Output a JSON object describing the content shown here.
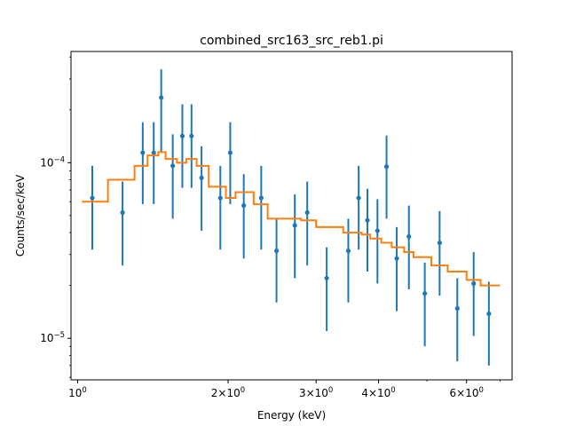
{
  "chart_data": {
    "type": "scatter",
    "title": "combined_src163_src_reb1.pi",
    "xlabel": "Energy (keV)",
    "ylabel": "Counts/sec/keV",
    "xscale": "log",
    "yscale": "log",
    "xlim": [
      0.97,
      7.4
    ],
    "ylim": [
      5.8e-06,
      0.00043
    ],
    "grid": false,
    "x_ticks": [
      {
        "value": 1,
        "label": "10^0",
        "mant": "10",
        "exp": "0"
      },
      {
        "value": 2,
        "label": "2×10^0",
        "mant": "2×10",
        "exp": "0"
      },
      {
        "value": 3,
        "label": "3×10^0",
        "mant": "3×10",
        "exp": "0"
      },
      {
        "value": 4,
        "label": "4×10^0",
        "mant": "4×10",
        "exp": "0"
      },
      {
        "value": 6,
        "label": "6×10^0",
        "mant": "6×10",
        "exp": "0"
      }
    ],
    "y_ticks": [
      {
        "value": 0.0001,
        "label": "10^-4",
        "mant": "10",
        "exp": "−4"
      },
      {
        "value": 1e-05,
        "label": "10^-5",
        "mant": "10",
        "exp": "−5"
      }
    ],
    "series": [
      {
        "kind": "errorbar",
        "color": "#1f77b4",
        "points": [
          {
            "x": 1.07,
            "y": 6.3e-05,
            "lo": 3.2e-05,
            "hi": 9.6e-05
          },
          {
            "x": 1.23,
            "y": 5.2e-05,
            "lo": 2.6e-05,
            "hi": 7.8e-05
          },
          {
            "x": 1.35,
            "y": 0.000114,
            "lo": 5.8e-05,
            "hi": 0.00017
          },
          {
            "x": 1.42,
            "y": 0.000114,
            "lo": 5.8e-05,
            "hi": 0.00017
          },
          {
            "x": 1.47,
            "y": 0.000235,
            "lo": 0.000115,
            "hi": 0.00034
          },
          {
            "x": 1.55,
            "y": 9.6e-05,
            "lo": 4.8e-05,
            "hi": 0.000145
          },
          {
            "x": 1.62,
            "y": 0.000142,
            "lo": 7.2e-05,
            "hi": 0.000215
          },
          {
            "x": 1.69,
            "y": 0.000142,
            "lo": 7.2e-05,
            "hi": 0.000215
          },
          {
            "x": 1.77,
            "y": 8.2e-05,
            "lo": 4.1e-05,
            "hi": 0.000124
          },
          {
            "x": 1.93,
            "y": 6.3e-05,
            "lo": 3.2e-05,
            "hi": 9.6e-05
          },
          {
            "x": 2.02,
            "y": 0.000114,
            "lo": 5.8e-05,
            "hi": 0.00017
          },
          {
            "x": 2.15,
            "y": 5.7e-05,
            "lo": 2.85e-05,
            "hi": 8.6e-05
          },
          {
            "x": 2.33,
            "y": 6.3e-05,
            "lo": 3.2e-05,
            "hi": 9.6e-05
          },
          {
            "x": 2.5,
            "y": 3.15e-05,
            "lo": 1.6e-05,
            "hi": 4.8e-05
          },
          {
            "x": 2.72,
            "y": 4.4e-05,
            "lo": 2.2e-05,
            "hi": 6.6e-05
          },
          {
            "x": 2.88,
            "y": 5.2e-05,
            "lo": 2.6e-05,
            "hi": 7.8e-05
          },
          {
            "x": 3.15,
            "y": 2.2e-05,
            "lo": 1.1e-05,
            "hi": 3.3e-05
          },
          {
            "x": 3.48,
            "y": 3.15e-05,
            "lo": 1.6e-05,
            "hi": 4.8e-05
          },
          {
            "x": 3.65,
            "y": 6.3e-05,
            "lo": 3.2e-05,
            "hi": 9.6e-05
          },
          {
            "x": 3.8,
            "y": 4.7e-05,
            "lo": 2.4e-05,
            "hi": 7.1e-05
          },
          {
            "x": 3.98,
            "y": 4.1e-05,
            "lo": 2.05e-05,
            "hi": 6.2e-05
          },
          {
            "x": 4.15,
            "y": 9.5e-05,
            "lo": 4.8e-05,
            "hi": 0.000143
          },
          {
            "x": 4.35,
            "y": 2.85e-05,
            "lo": 1.43e-05,
            "hi": 4.3e-05
          },
          {
            "x": 4.6,
            "y": 3.8e-05,
            "lo": 1.9e-05,
            "hi": 5.7e-05
          },
          {
            "x": 4.95,
            "y": 1.8e-05,
            "lo": 9e-06,
            "hi": 2.7e-05
          },
          {
            "x": 5.3,
            "y": 3.5e-05,
            "lo": 1.75e-05,
            "hi": 5.3e-05
          },
          {
            "x": 5.75,
            "y": 1.48e-05,
            "lo": 7.4e-06,
            "hi": 2.2e-05
          },
          {
            "x": 6.2,
            "y": 2.05e-05,
            "lo": 1.03e-05,
            "hi": 3.1e-05
          },
          {
            "x": 6.65,
            "y": 1.38e-05,
            "lo": 7e-06,
            "hi": 2.1e-05
          }
        ]
      },
      {
        "kind": "step",
        "color": "#ff7f0e",
        "points": [
          {
            "x": 1.02,
            "y": 6e-05
          },
          {
            "x": 1.15,
            "y": 8e-05
          },
          {
            "x": 1.3,
            "y": 9.6e-05
          },
          {
            "x": 1.38,
            "y": 0.00011
          },
          {
            "x": 1.45,
            "y": 0.000115
          },
          {
            "x": 1.5,
            "y": 0.000105
          },
          {
            "x": 1.58,
            "y": 0.0001
          },
          {
            "x": 1.65,
            "y": 0.000105
          },
          {
            "x": 1.73,
            "y": 9.6e-05
          },
          {
            "x": 1.83,
            "y": 7.3e-05
          },
          {
            "x": 1.98,
            "y": 6.3e-05
          },
          {
            "x": 2.07,
            "y": 6.8e-05
          },
          {
            "x": 2.25,
            "y": 5.8e-05
          },
          {
            "x": 2.4,
            "y": 4.8e-05
          },
          {
            "x": 2.8,
            "y": 4.7e-05
          },
          {
            "x": 3.0,
            "y": 4.3e-05
          },
          {
            "x": 3.4,
            "y": 4e-05
          },
          {
            "x": 3.7,
            "y": 3.9e-05
          },
          {
            "x": 3.85,
            "y": 3.7e-05
          },
          {
            "x": 4.05,
            "y": 3.5e-05
          },
          {
            "x": 4.25,
            "y": 3.3e-05
          },
          {
            "x": 4.5,
            "y": 3.1e-05
          },
          {
            "x": 4.7,
            "y": 2.9e-05
          },
          {
            "x": 5.1,
            "y": 2.6e-05
          },
          {
            "x": 5.5,
            "y": 2.4e-05
          },
          {
            "x": 6.0,
            "y": 2.15e-05
          },
          {
            "x": 6.4,
            "y": 2e-05
          },
          {
            "x": 7.0,
            "y": 2e-05
          }
        ]
      }
    ]
  }
}
